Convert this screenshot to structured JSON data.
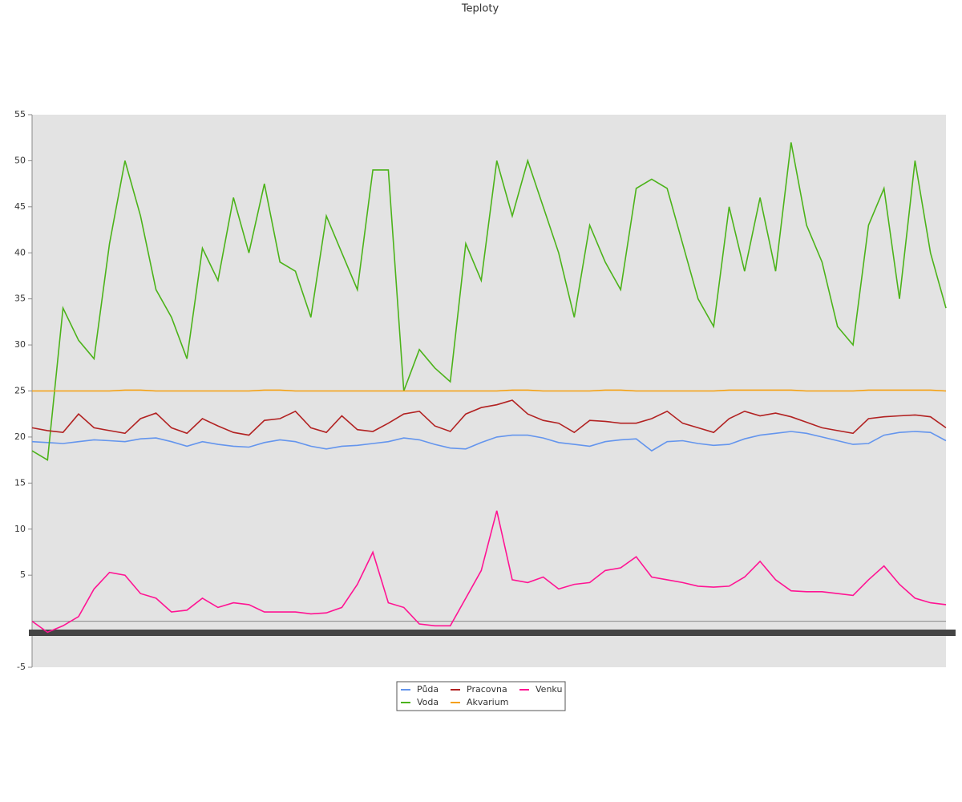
{
  "chart_data": {
    "type": "line",
    "title": "Teploty",
    "categories": [
      null,
      null,
      null,
      null,
      null,
      null,
      null,
      null,
      null,
      null,
      null,
      null,
      null,
      null,
      null,
      null,
      null,
      null,
      null,
      null,
      null,
      null,
      null,
      null,
      null,
      null,
      null,
      null,
      null,
      null,
      null,
      null,
      null,
      null,
      null,
      null,
      null,
      null,
      null,
      null,
      null,
      null,
      null,
      null,
      null,
      null,
      null,
      null,
      null,
      null,
      null,
      null,
      null,
      null,
      null,
      null,
      null,
      null,
      null,
      null
    ],
    "ylim": [
      -5,
      55
    ],
    "yticks": [
      -5,
      5,
      10,
      15,
      20,
      25,
      30,
      35,
      40,
      45,
      50,
      55
    ],
    "series": [
      {
        "name": "Půda",
        "color": "#6495ed",
        "values": [
          19.5,
          19.4,
          19.3,
          19.5,
          19.7,
          19.6,
          19.5,
          19.8,
          19.9,
          19.5,
          19,
          19.5,
          19.2,
          19,
          18.9,
          19.4,
          19.7,
          19.5,
          19,
          18.7,
          19,
          19.1,
          19.3,
          19.5,
          19.9,
          19.7,
          19.2,
          18.8,
          18.7,
          19.4,
          20,
          20.2,
          20.2,
          19.9,
          19.4,
          19.2,
          19,
          19.5,
          19.7,
          19.8,
          18.5,
          19.5,
          19.6,
          19.3,
          19.1,
          19.2,
          19.8,
          20.2,
          20.4,
          20.6,
          20.4,
          20,
          19.6,
          19.2,
          19.3,
          20.2,
          20.5,
          20.6,
          20.5,
          19.6
        ]
      },
      {
        "name": "Voda",
        "color": "#4cb31a",
        "values": [
          18.5,
          17.5,
          34,
          30.5,
          28.5,
          41,
          50,
          44,
          36,
          33,
          28.5,
          40.5,
          37,
          46,
          40,
          47.5,
          39,
          38,
          33,
          44,
          40,
          36,
          49,
          49,
          25,
          29.5,
          27.5,
          26,
          41,
          37,
          50,
          44,
          50,
          45,
          40,
          33,
          43,
          39,
          36,
          47,
          48,
          47,
          41,
          35,
          32,
          45,
          38,
          46,
          38,
          52,
          43,
          39,
          32,
          30,
          43,
          47,
          35,
          50,
          40,
          34
        ]
      },
      {
        "name": "Pracovna",
        "color": "#b22222",
        "values": [
          21,
          20.7,
          20.5,
          22.5,
          21,
          20.7,
          20.4,
          22,
          22.6,
          21,
          20.4,
          22,
          21.2,
          20.5,
          20.2,
          21.8,
          22,
          22.8,
          21,
          20.5,
          22.3,
          20.8,
          20.6,
          21.5,
          22.5,
          22.8,
          21.2,
          20.6,
          22.5,
          23.2,
          23.5,
          24,
          22.5,
          21.8,
          21.5,
          20.5,
          21.8,
          21.7,
          21.5,
          21.5,
          22,
          22.8,
          21.5,
          21,
          20.5,
          22,
          22.8,
          22.3,
          22.6,
          22.2,
          21.6,
          21,
          20.7,
          20.4,
          22,
          22.2,
          22.3,
          22.4,
          22.2,
          21
        ]
      },
      {
        "name": "Akvarium",
        "color": "#f5a00f",
        "values": [
          25,
          25,
          25,
          25,
          25,
          25,
          25.1,
          25.1,
          25,
          25,
          25,
          25,
          25,
          25,
          25,
          25.1,
          25.1,
          25,
          25,
          25,
          25,
          25,
          25,
          25,
          25,
          25,
          25,
          25,
          25,
          25,
          25,
          25.1,
          25.1,
          25,
          25,
          25,
          25,
          25.1,
          25.1,
          25,
          25,
          25,
          25,
          25,
          25,
          25.1,
          25.1,
          25.1,
          25.1,
          25.1,
          25,
          25,
          25,
          25,
          25.1,
          25.1,
          25.1,
          25.1,
          25.1,
          25
        ]
      },
      {
        "name": "Venku",
        "color": "#ff1493",
        "values": [
          0,
          -1.2,
          -0.5,
          0.5,
          3.5,
          5.3,
          5,
          3,
          2.5,
          1,
          1.2,
          2.5,
          1.5,
          2,
          1.8,
          1,
          1,
          1,
          0.8,
          0.9,
          1.5,
          4,
          7.5,
          2,
          1.5,
          -0.3,
          -0.5,
          -0.5,
          2.5,
          5.5,
          12,
          4.5,
          4.2,
          4.8,
          3.5,
          4,
          4.2,
          5.5,
          5.8,
          7,
          4.8,
          4.5,
          4.2,
          3.8,
          3.7,
          3.8,
          4.8,
          6.5,
          4.5,
          3.3,
          3.2,
          3.2,
          3,
          2.8,
          4.5,
          6,
          4,
          2.5,
          2,
          1.8
        ]
      }
    ]
  }
}
